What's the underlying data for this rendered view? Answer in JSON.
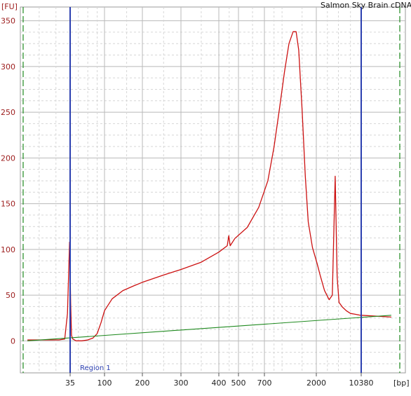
{
  "chart_data": {
    "type": "line",
    "title": "Salmon Sky Brain cDNA",
    "ylabel": "[FU]",
    "xlabel": "[bp]",
    "ylim": [
      -35,
      365
    ],
    "y_ticks": [
      0,
      50,
      100,
      150,
      200,
      250,
      300,
      350
    ],
    "y_tick_labels": [
      "0",
      "50",
      "100",
      "150",
      "200",
      "250",
      "300",
      "350"
    ],
    "x_scale": "log",
    "x_tick_labels": [
      {
        "bp": 35,
        "label": "35"
      },
      {
        "bp": 100,
        "label": "100"
      },
      {
        "bp": 200,
        "label": "200"
      },
      {
        "bp": 300,
        "label": "300"
      },
      {
        "bp": 400,
        "label": "400"
      },
      {
        "bp": 500,
        "label": "500"
      },
      {
        "bp": 700,
        "label": "700"
      },
      {
        "bp": 2000,
        "label": "2000"
      },
      {
        "bp": 10380,
        "label": "10380"
      }
    ],
    "grid": true,
    "region_label": "Region 1",
    "series": [
      {
        "color": "#cc1111",
        "points": [
          [
            22,
            1
          ],
          [
            28,
            1
          ],
          [
            31,
            1
          ],
          [
            33,
            2
          ],
          [
            34,
            30
          ],
          [
            34.8,
            108
          ],
          [
            35.6,
            40
          ],
          [
            36.5,
            6
          ],
          [
            38,
            2
          ],
          [
            42,
            0
          ],
          [
            50,
            0
          ],
          [
            60,
            1
          ],
          [
            70,
            3
          ],
          [
            80,
            8
          ],
          [
            90,
            20
          ],
          [
            100,
            33
          ],
          [
            115,
            46
          ],
          [
            140,
            55
          ],
          [
            170,
            60
          ],
          [
            200,
            64
          ],
          [
            250,
            72
          ],
          [
            300,
            78
          ],
          [
            350,
            86
          ],
          [
            400,
            97
          ],
          [
            440,
            104
          ],
          [
            448,
            115
          ],
          [
            455,
            104
          ],
          [
            480,
            112
          ],
          [
            560,
            124
          ],
          [
            650,
            146
          ],
          [
            750,
            175
          ],
          [
            850,
            212
          ],
          [
            950,
            254
          ],
          [
            1050,
            294
          ],
          [
            1150,
            325
          ],
          [
            1250,
            338
          ],
          [
            1330,
            338
          ],
          [
            1400,
            318
          ],
          [
            1500,
            253
          ],
          [
            1600,
            180
          ],
          [
            1700,
            130
          ],
          [
            1850,
            102
          ],
          [
            2050,
            85
          ],
          [
            2300,
            72
          ],
          [
            2700,
            55
          ],
          [
            3200,
            45
          ],
          [
            3600,
            50
          ],
          [
            4000,
            180
          ],
          [
            4300,
            70
          ],
          [
            4600,
            42
          ],
          [
            5200,
            37
          ],
          [
            6000,
            33
          ],
          [
            7000,
            30
          ],
          [
            8500,
            29
          ],
          [
            10000,
            28
          ],
          [
            10380,
            28
          ],
          [
            12000,
            26
          ]
        ]
      },
      {
        "color": "#1f8a1f",
        "points": [
          [
            22,
            0
          ],
          [
            12000,
            28
          ]
        ]
      }
    ],
    "markers": [
      {
        "name": "lower-marker",
        "bp": 35,
        "color": "#2b3fb0"
      },
      {
        "name": "upper-marker",
        "bp": 10380,
        "color": "#2b3fb0"
      }
    ],
    "region_bounds": [
      {
        "name": "region-start",
        "bp": 21,
        "color": "#1f8a1f"
      },
      {
        "name": "region-end",
        "bp": 12500,
        "color": "#1f8a1f"
      }
    ]
  }
}
